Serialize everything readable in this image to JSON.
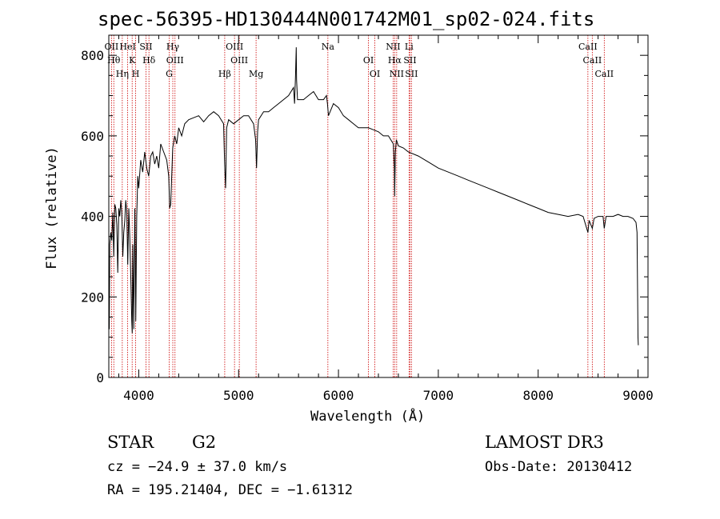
{
  "chart_data": {
    "type": "line",
    "title": "spec-56395-HD130444N001742M01_sp02-024.fits",
    "xlabel": "Wavelength (Å)",
    "ylabel": "Flux (relative)",
    "xlim": [
      3700,
      9100
    ],
    "ylim": [
      0,
      850
    ],
    "x_ticks": [
      4000,
      5000,
      6000,
      7000,
      8000,
      9000
    ],
    "y_ticks": [
      0,
      200,
      400,
      600,
      800
    ],
    "grid": false,
    "series": [
      {
        "x": [
          3700,
          3705,
          3710,
          3720,
          3730,
          3740,
          3750,
          3760,
          3770,
          3780,
          3790,
          3800,
          3810,
          3820,
          3830,
          3840,
          3850,
          3860,
          3870,
          3880,
          3890,
          3900,
          3910,
          3920,
          3930,
          3935,
          3940,
          3950,
          3960,
          3965,
          3970,
          3980,
          3990,
          4000,
          4020,
          4040,
          4060,
          4080,
          4100,
          4120,
          4140,
          4160,
          4180,
          4200,
          4220,
          4250,
          4280,
          4300,
          4310,
          4320,
          4340,
          4360,
          4380,
          4400,
          4430,
          4460,
          4500,
          4550,
          4600,
          4650,
          4700,
          4750,
          4800,
          4850,
          4860,
          4870,
          4880,
          4900,
          4950,
          5000,
          5050,
          5100,
          5150,
          5170,
          5180,
          5190,
          5200,
          5250,
          5300,
          5350,
          5400,
          5450,
          5500,
          5550,
          5560,
          5570,
          5577,
          5580,
          5590,
          5600,
          5650,
          5700,
          5750,
          5800,
          5850,
          5880,
          5890,
          5900,
          5950,
          6000,
          6050,
          6100,
          6150,
          6200,
          6250,
          6300,
          6350,
          6400,
          6450,
          6500,
          6550,
          6560,
          6563,
          6570,
          6580,
          6600,
          6650,
          6700,
          6800,
          6900,
          7000,
          7100,
          7200,
          7300,
          7400,
          7500,
          7600,
          7700,
          7800,
          7900,
          8000,
          8100,
          8200,
          8300,
          8400,
          8450,
          8498,
          8510,
          8542,
          8560,
          8600,
          8650,
          8662,
          8680,
          8750,
          8800,
          8850,
          8900,
          8950,
          8980,
          8990,
          9000,
          9003
        ],
        "y": [
          150,
          120,
          330,
          360,
          340,
          410,
          300,
          430,
          420,
          380,
          260,
          420,
          400,
          440,
          410,
          300,
          360,
          390,
          440,
          410,
          280,
          420,
          350,
          250,
          140,
          110,
          330,
          120,
          420,
          300,
          140,
          400,
          500,
          470,
          540,
          510,
          560,
          520,
          500,
          550,
          560,
          530,
          550,
          520,
          580,
          560,
          540,
          500,
          420,
          430,
          570,
          600,
          580,
          620,
          600,
          630,
          640,
          645,
          650,
          635,
          650,
          660,
          650,
          630,
          530,
          470,
          620,
          640,
          630,
          640,
          650,
          650,
          630,
          590,
          520,
          610,
          640,
          660,
          660,
          670,
          680,
          690,
          700,
          720,
          680,
          750,
          820,
          740,
          690,
          690,
          690,
          700,
          710,
          690,
          690,
          700,
          680,
          650,
          680,
          670,
          650,
          640,
          630,
          620,
          620,
          620,
          615,
          610,
          600,
          600,
          580,
          520,
          450,
          560,
          590,
          575,
          570,
          560,
          550,
          535,
          520,
          510,
          500,
          490,
          480,
          470,
          460,
          450,
          440,
          430,
          420,
          410,
          405,
          400,
          405,
          400,
          360,
          390,
          370,
          395,
          400,
          400,
          370,
          400,
          400,
          405,
          400,
          400,
          395,
          385,
          360,
          100,
          80
        ]
      }
    ],
    "line_markers": [
      {
        "label": "OII",
        "x": 3727
      },
      {
        "label": "Hθ",
        "x": 3750
      },
      {
        "label": "Hη",
        "x": 3835
      },
      {
        "label": "HeI",
        "x": 3889
      },
      {
        "label": "K",
        "x": 3934
      },
      {
        "label": "H",
        "x": 3969
      },
      {
        "label": "SII",
        "x": 4072
      },
      {
        "label": "Hδ",
        "x": 4102
      },
      {
        "label": "G",
        "x": 4305
      },
      {
        "label": "Hγ",
        "x": 4341
      },
      {
        "label": "OIII",
        "x": 4363
      },
      {
        "label": "Hβ",
        "x": 4861
      },
      {
        "label": "OIII",
        "x": 4959
      },
      {
        "label": "OIII",
        "x": 5007
      },
      {
        "label": "Mg",
        "x": 5175
      },
      {
        "label": "Na",
        "x": 5894
      },
      {
        "label": "OI",
        "x": 6300
      },
      {
        "label": "OI",
        "x": 6364
      },
      {
        "label": "NII",
        "x": 6548
      },
      {
        "label": "Hα",
        "x": 6563
      },
      {
        "label": "NII",
        "x": 6583
      },
      {
        "label": "Li",
        "x": 6707
      },
      {
        "label": "SII",
        "x": 6716
      },
      {
        "label": "SII",
        "x": 6731
      },
      {
        "label": "CaII",
        "x": 8498
      },
      {
        "label": "CaII",
        "x": 8542
      },
      {
        "label": "CaII",
        "x": 8662
      }
    ],
    "marker_color": "#cc0000"
  },
  "info": {
    "class_label": "STAR",
    "subclass": "G2",
    "survey": "LAMOST DR3",
    "cz": "cz = −24.9 ± 37.0 km/s",
    "obs_date": "Obs-Date: 20130412",
    "coords": "RA = 195.21404, DEC =  −1.61312"
  }
}
